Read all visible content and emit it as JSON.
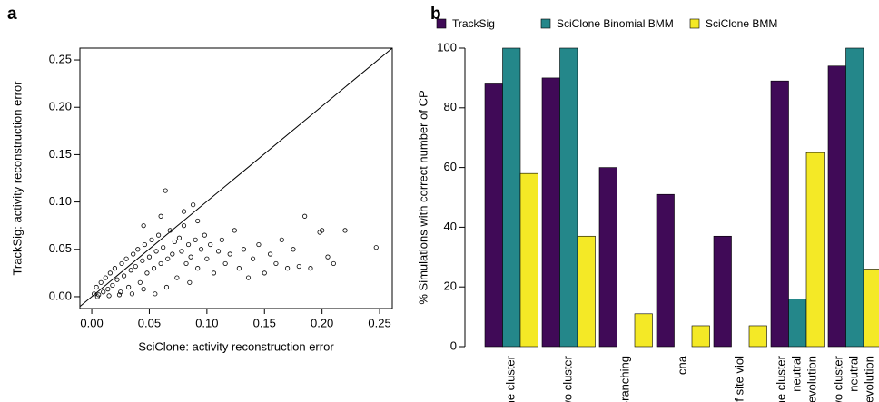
{
  "chart_data": [
    {
      "type": "scatter",
      "label": "a",
      "x_label": "SciClone: activity reconstruction error",
      "y_label": "TrackSig: activity reconstruction error",
      "xlim": [
        -0.0103,
        0.261
      ],
      "ylim": [
        -0.0125,
        0.2625
      ],
      "xticks": [
        {
          "value": 0,
          "label": "0.00"
        },
        {
          "value": 0.05,
          "label": "0.05"
        },
        {
          "value": 0.1,
          "label": "0.10"
        },
        {
          "value": 0.15,
          "label": "0.15"
        },
        {
          "value": 0.2,
          "label": "0.20"
        },
        {
          "value": 0.25,
          "label": "0.25"
        }
      ],
      "yticks": [
        {
          "value": 0,
          "label": "0.00"
        },
        {
          "value": 0.05,
          "label": "0.05"
        },
        {
          "value": 0.1,
          "label": "0.10"
        },
        {
          "value": 0.15,
          "label": "0.15"
        },
        {
          "value": 0.2,
          "label": "0.20"
        },
        {
          "value": 0.25,
          "label": "0.25"
        }
      ],
      "identity_line": true,
      "x": [
        0.002,
        0.004,
        0.006,
        0.008,
        0.01,
        0.012,
        0.014,
        0.016,
        0.018,
        0.02,
        0.022,
        0.024,
        0.026,
        0.028,
        0.03,
        0.032,
        0.034,
        0.036,
        0.038,
        0.04,
        0.042,
        0.044,
        0.046,
        0.048,
        0.05,
        0.052,
        0.054,
        0.056,
        0.058,
        0.06,
        0.062,
        0.064,
        0.066,
        0.068,
        0.07,
        0.072,
        0.074,
        0.076,
        0.078,
        0.08,
        0.082,
        0.084,
        0.086,
        0.088,
        0.09,
        0.092,
        0.095,
        0.098,
        0.1,
        0.103,
        0.106,
        0.11,
        0.113,
        0.116,
        0.12,
        0.124,
        0.128,
        0.132,
        0.136,
        0.14,
        0.145,
        0.15,
        0.155,
        0.16,
        0.165,
        0.17,
        0.175,
        0.18,
        0.185,
        0.19,
        0.198,
        0.2,
        0.205,
        0.21,
        0.22,
        0.247,
        0.005,
        0.015,
        0.025,
        0.035,
        0.045,
        0.055,
        0.065,
        0.085,
        0.092,
        0.08,
        0.06,
        0.045
      ],
      "values": [
        0.003,
        0.01,
        0.002,
        0.015,
        0.005,
        0.02,
        0.008,
        0.025,
        0.012,
        0.03,
        0.018,
        0.002,
        0.035,
        0.022,
        0.04,
        0.01,
        0.028,
        0.045,
        0.032,
        0.05,
        0.015,
        0.038,
        0.055,
        0.025,
        0.042,
        0.06,
        0.03,
        0.048,
        0.065,
        0.035,
        0.052,
        0.112,
        0.04,
        0.07,
        0.045,
        0.058,
        0.02,
        0.062,
        0.048,
        0.075,
        0.035,
        0.055,
        0.042,
        0.097,
        0.06,
        0.03,
        0.05,
        0.065,
        0.04,
        0.055,
        0.025,
        0.048,
        0.06,
        0.035,
        0.045,
        0.07,
        0.03,
        0.05,
        0.02,
        0.04,
        0.055,
        0.025,
        0.045,
        0.035,
        0.06,
        0.03,
        0.05,
        0.032,
        0.085,
        0.03,
        0.068,
        0.07,
        0.042,
        0.035,
        0.07,
        0.052,
        0.0,
        0.001,
        0.005,
        0.003,
        0.008,
        0.003,
        0.01,
        0.015,
        0.08,
        0.09,
        0.085,
        0.075
      ]
    },
    {
      "type": "bar",
      "label": "b",
      "y_label": "% Simulations with correct number of CP",
      "ylim": [
        0,
        100
      ],
      "yticks": [
        0,
        20,
        40,
        60,
        80,
        100
      ],
      "categories": [
        "One cluster",
        "Two cluster",
        "Branching",
        "cna",
        "inf site viol",
        "One cluster\nneutral\nevolution",
        "Two cluster\nneutral\nevolution"
      ],
      "series": [
        {
          "name": "TrackSig",
          "color": "#400a57",
          "values": [
            88,
            90,
            60,
            51,
            37,
            89,
            94
          ]
        },
        {
          "name": "SciClone Binomial BMM",
          "color": "#24878a",
          "values": [
            100,
            100,
            0,
            0,
            0,
            16,
            100
          ]
        },
        {
          "name": "SciClone BMM",
          "color": "#f4e926",
          "values": [
            58,
            37,
            11,
            7,
            7,
            65,
            26
          ]
        }
      ]
    }
  ]
}
